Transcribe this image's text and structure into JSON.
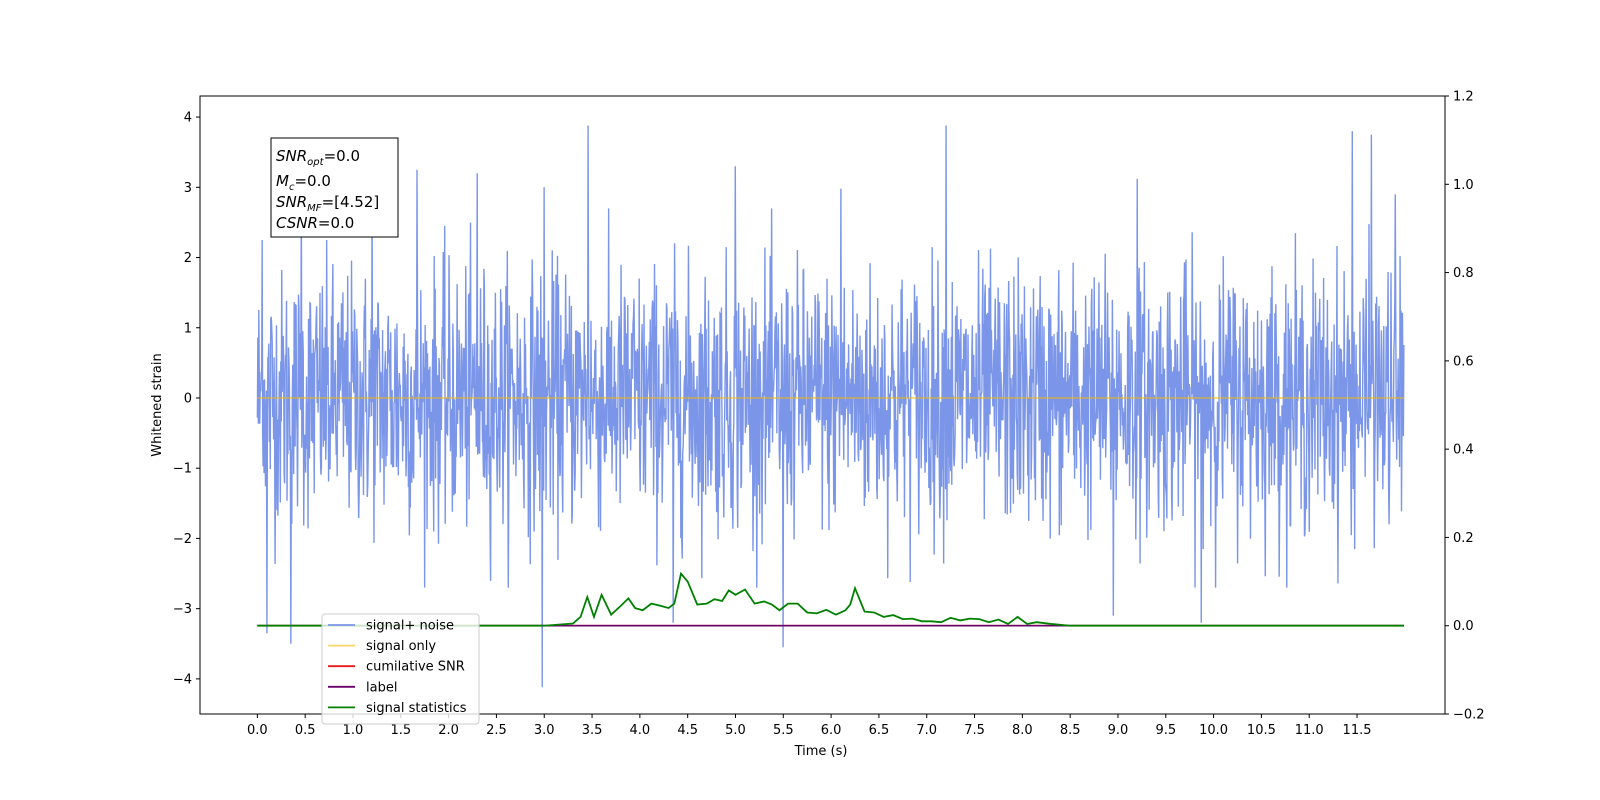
{
  "chart_data": {
    "type": "line",
    "xlabel": "Time (s)",
    "ylabel": "Whitened strain",
    "xlim": [
      -0.6,
      12.42
    ],
    "ylim": [
      -4.5,
      4.3
    ],
    "ylim_right": [
      -0.2,
      1.2
    ],
    "x_ticks": [
      "0.0",
      "0.5",
      "1.0",
      "1.5",
      "2.0",
      "2.5",
      "3.0",
      "3.5",
      "4.0",
      "4.5",
      "5.0",
      "5.5",
      "6.0",
      "6.5",
      "7.0",
      "7.5",
      "8.0",
      "8.5",
      "9.0",
      "9.5",
      "10.0",
      "10.5",
      "11.0",
      "11.5"
    ],
    "y_ticks_left": [
      "4",
      "3",
      "2",
      "1",
      "0",
      "−1",
      "−2",
      "−3",
      "−4"
    ],
    "y_ticks_right": [
      "1.2",
      "1.0",
      "0.8",
      "0.6",
      "0.4",
      "0.2",
      "0.0",
      "−0.2"
    ],
    "grid": false,
    "legend_location": "lower-left",
    "stats_box": {
      "snr_opt": {
        "base": "SNR",
        "sub": "opt",
        "value": "=0.0"
      },
      "mc": {
        "base": "M",
        "sub": "c",
        "value": "=0.0"
      },
      "snr_mf": {
        "base": "SNR",
        "sub": "MF",
        "value": "=[4.52]"
      },
      "csnr": {
        "base": "CSNR",
        "value": "=0.0"
      }
    },
    "series": [
      {
        "name": "signal+ noise",
        "color": "#7b96e8",
        "axis": "left",
        "description_values": {
          "x_start": 0.0,
          "x_end": 11.99,
          "std": 0.9,
          "peak_max": 3.88,
          "peak_min": -4.12
        },
        "peaks": [
          [
            0.05,
            2.25
          ],
          [
            0.1,
            -3.35
          ],
          [
            0.35,
            -3.5
          ],
          [
            0.46,
            3.0
          ],
          [
            1.2,
            3.0
          ],
          [
            1.67,
            3.25
          ],
          [
            2.3,
            3.2
          ],
          [
            2.98,
            -4.12
          ],
          [
            3.0,
            3.0
          ],
          [
            3.46,
            3.88
          ],
          [
            4.35,
            -3.2
          ],
          [
            5.0,
            3.3
          ],
          [
            5.5,
            -3.55
          ],
          [
            6.1,
            2.98
          ],
          [
            7.2,
            3.88
          ],
          [
            8.95,
            -3.1
          ],
          [
            9.2,
            3.12
          ],
          [
            9.87,
            -3.2
          ],
          [
            11.45,
            3.8
          ],
          [
            11.65,
            3.75
          ],
          [
            11.9,
            2.9
          ]
        ]
      },
      {
        "name": "signal only",
        "color": "#f5b800",
        "axis": "left",
        "x": [
          0.0,
          11.99
        ],
        "y": [
          0.0,
          0.0
        ]
      },
      {
        "name": "cumilative SNR",
        "color": "#e41a1c",
        "axis": "right",
        "x": [
          0.0,
          11.99
        ],
        "y": [
          0.0,
          0.0
        ]
      },
      {
        "name": "label",
        "color": "#6a006a",
        "axis": "right",
        "x": [
          0.0,
          11.99
        ],
        "y": [
          0.0,
          0.0
        ]
      },
      {
        "name": "signal statistics",
        "color": "#008000",
        "axis": "right",
        "x": [
          0.0,
          3.0,
          3.3,
          3.38,
          3.45,
          3.52,
          3.6,
          3.7,
          3.8,
          3.88,
          3.95,
          4.03,
          4.12,
          4.22,
          4.3,
          4.36,
          4.43,
          4.5,
          4.6,
          4.7,
          4.78,
          4.86,
          4.93,
          5.0,
          5.1,
          5.2,
          5.3,
          5.38,
          5.46,
          5.55,
          5.65,
          5.75,
          5.85,
          5.95,
          6.05,
          6.15,
          6.2,
          6.25,
          6.35,
          6.45,
          6.55,
          6.65,
          6.75,
          6.85,
          6.95,
          7.05,
          7.15,
          7.25,
          7.35,
          7.45,
          7.55,
          7.65,
          7.75,
          7.85,
          7.95,
          8.05,
          8.15,
          8.3,
          8.5,
          11.99
        ],
        "y": [
          0.0,
          0.0,
          0.005,
          0.02,
          0.065,
          0.02,
          0.07,
          0.025,
          0.045,
          0.062,
          0.04,
          0.035,
          0.05,
          0.045,
          0.04,
          0.05,
          0.118,
          0.1,
          0.048,
          0.05,
          0.06,
          0.056,
          0.08,
          0.07,
          0.082,
          0.05,
          0.055,
          0.048,
          0.035,
          0.05,
          0.05,
          0.03,
          0.028,
          0.036,
          0.025,
          0.035,
          0.048,
          0.085,
          0.032,
          0.03,
          0.02,
          0.024,
          0.015,
          0.016,
          0.01,
          0.01,
          0.008,
          0.018,
          0.012,
          0.016,
          0.015,
          0.008,
          0.014,
          0.004,
          0.02,
          0.004,
          0.008,
          0.004,
          0.0,
          0.0
        ]
      }
    ]
  }
}
